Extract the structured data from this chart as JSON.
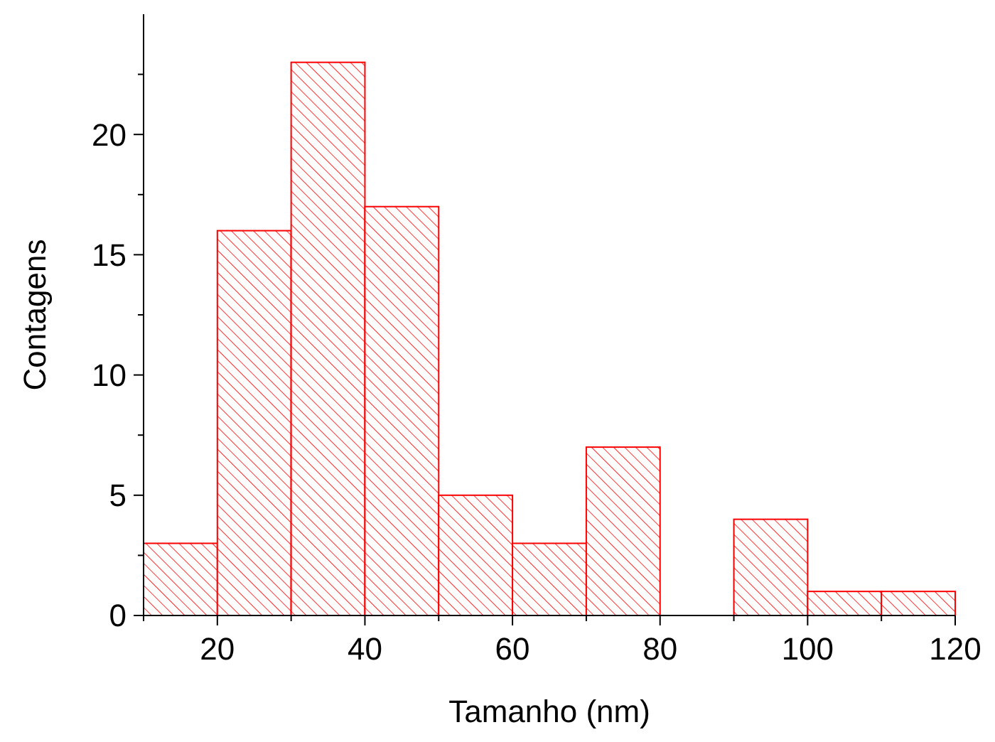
{
  "chart_data": {
    "type": "histogram",
    "xlabel": "Tamanho (nm)",
    "ylabel": "Contagens",
    "bins": [
      10,
      20,
      30,
      40,
      50,
      60,
      70,
      80,
      90,
      100,
      110,
      120
    ],
    "values": [
      3,
      16,
      23,
      17,
      5,
      3,
      7,
      0,
      4,
      1,
      1
    ],
    "color": "#ff0000",
    "xlim": [
      10,
      120
    ],
    "xticks": [
      {
        "value": 10,
        "label": null
      },
      20,
      {
        "value": 30,
        "label": null
      },
      40,
      {
        "value": 50,
        "label": null
      },
      60,
      {
        "value": 70,
        "label": null
      },
      80,
      {
        "value": 90,
        "label": null
      },
      100,
      {
        "value": 110,
        "label": null
      },
      120
    ],
    "ylim": [
      0,
      25
    ],
    "yticks": [
      0,
      {
        "value": 2.5,
        "label": null
      },
      5,
      {
        "value": 7.5,
        "label": null
      },
      10,
      {
        "value": 12.5,
        "label": null
      },
      15,
      {
        "value": 17.5,
        "label": null
      },
      20,
      {
        "value": 22.5,
        "label": null
      }
    ],
    "grid": false
  }
}
